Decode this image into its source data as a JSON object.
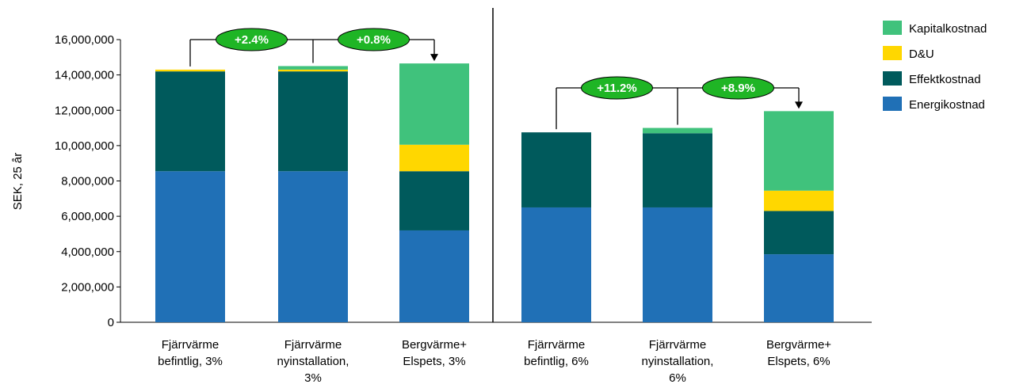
{
  "chart_data": {
    "type": "bar",
    "stacked": true,
    "ylabel": "SEK, 25 år",
    "ylim": [
      0,
      16000000
    ],
    "yticks": [
      0,
      2000000,
      4000000,
      6000000,
      8000000,
      10000000,
      12000000,
      14000000,
      16000000
    ],
    "ytick_labels": [
      "0",
      "2,000,000",
      "4,000,000",
      "6,000,000",
      "8,000,000",
      "10,000,000",
      "12,000,000",
      "14,000,000",
      "16,000,000"
    ],
    "grid": false,
    "legend_position": "top-right",
    "categories": [
      [
        "Fjärrvärme",
        "befintlig, 3%"
      ],
      [
        "Fjärrvärme",
        "nyinstallation,",
        "3%"
      ],
      [
        "Bergvärme+",
        "Elspets, 3%"
      ],
      [
        "Fjärrvärme",
        "befintlig, 6%"
      ],
      [
        "Fjärrvärme",
        "nyinstallation,",
        "6%"
      ],
      [
        "Bergvärme+",
        "Elspets, 6%"
      ]
    ],
    "series": [
      {
        "name": "Energikostnad",
        "color": "#2070b6",
        "values": [
          8550000,
          8550000,
          5200000,
          6500000,
          6500000,
          3850000
        ]
      },
      {
        "name": "Effektkostnad",
        "color": "#005a5c",
        "values": [
          5650000,
          5650000,
          3350000,
          4250000,
          4200000,
          2450000
        ]
      },
      {
        "name": "D&U",
        "color": "#ffd700",
        "values": [
          100000,
          100000,
          1500000,
          0,
          0,
          1150000
        ]
      },
      {
        "name": "Kapitalkostnad",
        "color": "#40c27c",
        "values": [
          0,
          200000,
          4600000,
          0,
          300000,
          4500000
        ]
      }
    ],
    "legend_order": [
      "Kapitalkostnad",
      "D&U",
      "Effektkostnad",
      "Energikostnad"
    ],
    "annotations": [
      {
        "group": 0,
        "labels": [
          "+2.4%",
          "+0.8%"
        ]
      },
      {
        "group": 1,
        "labels": [
          "+11.2%",
          "+8.9%"
        ]
      }
    ],
    "annotation_fill": "#1fb525",
    "divider_between_categories": [
      2,
      3
    ]
  }
}
